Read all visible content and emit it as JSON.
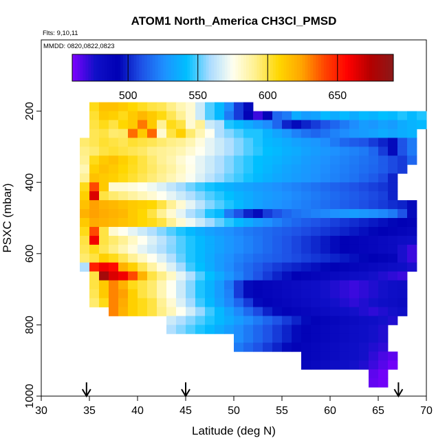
{
  "header": {
    "flights_text": "Flts: 9,10,11",
    "dates_text": "MMDD: 0820,0822,0823"
  },
  "chart_data": {
    "type": "heatmap",
    "title": "ATOM1 North_America CH3Cl_PMSD",
    "xlabel": "Latitude (deg N)",
    "ylabel": "PSXC (mbar)",
    "xlim": [
      30,
      70
    ],
    "ylim": [
      1000,
      0
    ],
    "x_ticks": [
      "30",
      "35",
      "40",
      "45",
      "50",
      "55",
      "60",
      "65",
      "70"
    ],
    "y_ticks": [
      "200",
      "400",
      "600",
      "800",
      "1000"
    ],
    "colorbar": {
      "range": [
        460,
        690
      ],
      "ticks": [
        "500",
        "550",
        "600",
        "650"
      ],
      "colors": [
        "#7f00ff",
        "#1010c8",
        "#0000b4",
        "#1e50e6",
        "#1e90ff",
        "#00bfff",
        "#aadcff",
        "#fffff0",
        "#fff08c",
        "#ffd700",
        "#ffa500",
        "#ff4500",
        "#ff0000",
        "#b40000",
        "#8b1a1a"
      ]
    },
    "cell_size": {
      "lat": 1,
      "pressure": 25
    },
    "bands": [
      {
        "p": 187.5,
        "lat_start": 35,
        "lat_end": 52,
        "values": [
          605,
          615,
          615,
          612,
          608,
          604,
          600,
          598,
          592,
          585,
          580,
          565,
          550,
          540,
          525,
          505,
          495
        ]
      },
      {
        "p": 212.5,
        "lat_start": 35,
        "lat_end": 70,
        "values": [
          602,
          612,
          610,
          605,
          612,
          618,
          612,
          606,
          598,
          590,
          580,
          565,
          550,
          540,
          520,
          505,
          490,
          470,
          490,
          515,
          520,
          535,
          530,
          532,
          540,
          535,
          540,
          535,
          540,
          538,
          542,
          540,
          545,
          540,
          545
        ]
      },
      {
        "p": 237.5,
        "lat_start": 35,
        "lat_end": 70,
        "values": [
          600,
          605,
          600,
          608,
          612,
          632,
          612,
          590,
          605,
          600,
          580,
          590,
          565,
          560,
          545,
          540,
          535,
          530,
          525,
          515,
          500,
          495,
          500,
          505,
          510,
          515,
          520,
          525,
          530,
          528,
          532,
          530,
          535,
          538,
          540
        ]
      },
      {
        "p": 262.5,
        "lat_start": 35,
        "lat_end": 69,
        "values": [
          598,
          600,
          595,
          596,
          634,
          612,
          635,
          580,
          600,
          610,
          595,
          585,
          575,
          560,
          555,
          550,
          545,
          545,
          538,
          533,
          528,
          522,
          518,
          515,
          518,
          522,
          525,
          528,
          530,
          532,
          535,
          533,
          536,
          538
        ]
      },
      {
        "p": 287.5,
        "lat_start": 34,
        "lat_end": 69,
        "values": [
          595,
          598,
          602,
          600,
          598,
          602,
          600,
          598,
          595,
          592,
          590,
          585,
          578,
          570,
          565,
          560,
          555,
          550,
          545,
          540,
          538,
          535,
          532,
          530,
          528,
          525,
          520,
          515,
          512,
          510,
          505,
          500,
          495,
          510,
          520
        ]
      },
      {
        "p": 312.5,
        "lat_start": 34,
        "lat_end": 69,
        "values": [
          592,
          595,
          600,
          602,
          600,
          598,
          596,
          592,
          590,
          588,
          585,
          580,
          575,
          570,
          565,
          560,
          555,
          550,
          546,
          542,
          540,
          537,
          535,
          532,
          530,
          528,
          526,
          524,
          522,
          520,
          515,
          505,
          495,
          510,
          520
        ]
      },
      {
        "p": 337.5,
        "lat_start": 34,
        "lat_end": 69,
        "values": [
          590,
          605,
          612,
          615,
          610,
          605,
          600,
          595,
          590,
          586,
          580,
          575,
          570,
          565,
          560,
          555,
          550,
          546,
          542,
          540,
          538,
          535,
          533,
          530,
          528,
          526,
          524,
          522,
          520,
          518,
          516,
          512,
          508,
          505,
          515
        ]
      },
      {
        "p": 362.5,
        "lat_start": 34,
        "lat_end": 68,
        "values": [
          585,
          610,
          615,
          612,
          608,
          604,
          600,
          596,
          592,
          588,
          582,
          576,
          570,
          565,
          560,
          555,
          550,
          546,
          542,
          539,
          536,
          533,
          531,
          529,
          527,
          525,
          523,
          521,
          519,
          517,
          515,
          512,
          508,
          505
        ]
      },
      {
        "p": 387.5,
        "lat_start": 34,
        "lat_end": 67,
        "values": [
          590,
          615,
          612,
          610,
          606,
          602,
          598,
          594,
          590,
          585,
          580,
          574,
          568,
          562,
          557,
          552,
          548,
          544,
          540,
          537,
          534,
          532,
          530,
          528,
          526,
          524,
          522,
          520,
          518,
          515,
          512,
          508,
          500
        ]
      },
      {
        "p": 412.5,
        "lat_start": 34,
        "lat_end": 67,
        "values": [
          605,
          640,
          612,
          580,
          580,
          578,
          575,
          572,
          568,
          563,
          558,
          553,
          548,
          544,
          540,
          537,
          534,
          532,
          530,
          528,
          526,
          524,
          522,
          520,
          518,
          516,
          514,
          512,
          510,
          508,
          506,
          504,
          500
        ]
      },
      {
        "p": 437.5,
        "lat_start": 34,
        "lat_end": 67,
        "values": [
          610,
          665,
          600,
          595,
          592,
          588,
          584,
          580,
          575,
          570,
          565,
          560,
          555,
          550,
          546,
          542,
          538,
          535,
          532,
          530,
          528,
          526,
          524,
          522,
          520,
          518,
          516,
          514,
          512,
          510,
          508,
          506,
          500
        ]
      },
      {
        "p": 462.5,
        "lat_start": 34,
        "lat_end": 68,
        "values": [
          615,
          625,
          620,
          618,
          615,
          612,
          610,
          608,
          600,
          590,
          580,
          570,
          562,
          555,
          550,
          545,
          540,
          536,
          532,
          529,
          527,
          525,
          523,
          521,
          519,
          517,
          515,
          513,
          511,
          509,
          507,
          505,
          502,
          500,
          495
        ]
      },
      {
        "p": 487.5,
        "lat_start": 34,
        "lat_end": 68,
        "values": [
          620,
          625,
          622,
          620,
          618,
          612,
          608,
          600,
          590,
          580,
          570,
          560,
          555,
          545,
          540,
          520,
          510,
          500,
          495,
          505,
          510,
          515,
          518,
          520,
          522,
          524,
          526,
          528,
          530,
          528,
          526,
          524,
          520,
          510,
          495
        ]
      },
      {
        "p": 512.5,
        "lat_start": 34,
        "lat_end": 68,
        "values": [
          612,
          622,
          620,
          618,
          615,
          612,
          608,
          605,
          600,
          590,
          580,
          572,
          565,
          558,
          552,
          546,
          540,
          535,
          530,
          526,
          522,
          518,
          515,
          512,
          510,
          508,
          506,
          504,
          502,
          500,
          498,
          496,
          494,
          492,
          490
        ]
      },
      {
        "p": 537.5,
        "lat_start": 34,
        "lat_end": 68,
        "values": [
          605,
          640,
          600,
          580,
          575,
          570,
          565,
          560,
          555,
          550,
          545,
          540,
          536,
          532,
          529,
          526,
          523,
          520,
          518,
          516,
          514,
          512,
          510,
          508,
          506,
          504,
          502,
          500,
          498,
          496,
          494,
          492,
          490,
          488,
          486
        ]
      },
      {
        "p": 562.5,
        "lat_start": 34,
        "lat_end": 68,
        "values": [
          600,
          660,
          600,
          595,
          590,
          582,
          575,
          568,
          562,
          556,
          550,
          545,
          540,
          536,
          532,
          528,
          525,
          522,
          519,
          516,
          513,
          510,
          507,
          504,
          501,
          498,
          495,
          492,
          490,
          488,
          486,
          484,
          482,
          480,
          478
        ]
      },
      {
        "p": 587.5,
        "lat_start": 34,
        "lat_end": 68,
        "values": [
          598,
          605,
          598,
          592,
          585,
          578,
          570,
          565,
          560,
          555,
          550,
          545,
          540,
          536,
          532,
          528,
          525,
          522,
          519,
          516,
          513,
          510,
          507,
          504,
          501,
          498,
          495,
          492,
          490,
          488,
          486,
          484,
          482,
          475,
          470
        ]
      },
      {
        "p": 612.5,
        "lat_start": 34,
        "lat_end": 68,
        "values": [
          595,
          600,
          610,
          605,
          598,
          590,
          582,
          575,
          568,
          560,
          552,
          545,
          540,
          535,
          530,
          526,
          522,
          519,
          516,
          514,
          512,
          510,
          508,
          506,
          504,
          502,
          500,
          498,
          496,
          494,
          492,
          490,
          488,
          475,
          470
        ]
      },
      {
        "p": 637.5,
        "lat_start": 34,
        "lat_end": 68,
        "values": [
          560,
          650,
          660,
          655,
          620,
          610,
          598,
          588,
          578,
          568,
          558,
          548,
          542,
          536,
          530,
          525,
          520,
          516,
          512,
          508,
          505,
          502,
          500,
          498,
          496,
          494,
          492,
          490,
          488,
          486,
          484,
          482,
          480,
          478,
          475
        ]
      },
      {
        "p": 662.5,
        "lat_start": 35,
        "lat_end": 68,
        "values": [
          600,
          680,
          665,
          660,
          640,
          620,
          600,
          592,
          582,
          570,
          560,
          550,
          542,
          535,
          528,
          522,
          516,
          510,
          505,
          500,
          496,
          492,
          490,
          488,
          486,
          484,
          482,
          480,
          478,
          476,
          474,
          472,
          470
        ]
      },
      {
        "p": 687.5,
        "lat_start": 35,
        "lat_end": 68,
        "values": [
          600,
          612,
          630,
          620,
          605,
          600,
          595,
          585,
          575,
          565,
          555,
          545,
          538,
          530,
          520,
          505,
          495,
          490,
          488,
          486,
          484,
          482,
          480,
          478,
          476,
          474,
          472,
          470,
          472,
          474,
          476,
          478,
          480
        ]
      },
      {
        "p": 712.5,
        "lat_start": 35,
        "lat_end": 68,
        "values": [
          598,
          612,
          630,
          625,
          610,
          600,
          595,
          585,
          575,
          565,
          555,
          545,
          538,
          530,
          522,
          505,
          495,
          490,
          488,
          486,
          484,
          482,
          480,
          478,
          476,
          474,
          472,
          470,
          472,
          474,
          476,
          478,
          480
        ]
      },
      {
        "p": 737.5,
        "lat_start": 35,
        "lat_end": 68,
        "values": [
          595,
          605,
          630,
          622,
          610,
          605,
          600,
          590,
          580,
          568,
          558,
          548,
          540,
          532,
          524,
          515,
          505,
          495,
          490,
          488,
          486,
          484,
          482,
          480,
          478,
          476,
          474,
          472,
          474,
          476,
          478,
          480,
          482
        ]
      },
      {
        "p": 762.5,
        "lat_start": 37,
        "lat_end": 68,
        "values": [
          630,
          620,
          610,
          605,
          600,
          592,
          584,
          575,
          566,
          557,
          548,
          540,
          532,
          524,
          516,
          508,
          500,
          495,
          490,
          488,
          486,
          484,
          482,
          480,
          478,
          476,
          474,
          472,
          474,
          476,
          478
        ]
      },
      {
        "p": 787.5,
        "lat_start": 43,
        "lat_end": 67,
        "values": [
          565,
          560,
          555,
          550,
          545,
          540,
          535,
          530,
          525,
          520,
          515,
          510,
          505,
          500,
          495,
          490,
          488,
          486,
          484,
          482,
          480,
          478,
          476,
          474
        ]
      },
      {
        "p": 812.5,
        "lat_start": 43,
        "lat_end": 66,
        "values": [
          560,
          555,
          550,
          545,
          540,
          535,
          530,
          525,
          520,
          515,
          510,
          505,
          500,
          495,
          490,
          488,
          486,
          484,
          482,
          480,
          478,
          476,
          474
        ]
      },
      {
        "p": 837.5,
        "lat_start": 50,
        "lat_end": 66,
        "values": [
          525,
          520,
          515,
          510,
          505,
          500,
          495,
          490,
          488,
          486,
          484,
          482,
          480,
          478,
          476,
          474
        ]
      },
      {
        "p": 862.5,
        "lat_start": 50,
        "lat_end": 66,
        "values": [
          520,
          515,
          510,
          505,
          500,
          495,
          490,
          488,
          486,
          484,
          482,
          480,
          478,
          476,
          474,
          472
        ]
      },
      {
        "p": 887.5,
        "lat_start": 57,
        "lat_end": 67,
        "values": [
          488,
          486,
          484,
          482,
          480,
          478,
          476,
          472,
          468,
          465
        ]
      },
      {
        "p": 912.5,
        "lat_start": 57,
        "lat_end": 67,
        "values": [
          486,
          484,
          482,
          480,
          478,
          476,
          474,
          470,
          466,
          462
        ]
      },
      {
        "p": 937.5,
        "lat_start": 64,
        "lat_end": 66,
        "values": [
          465,
          462
        ]
      },
      {
        "p": 962.5,
        "lat_start": 64,
        "lat_end": 66,
        "values": [
          464,
          462
        ]
      }
    ],
    "arrows_lat": [
      34.7,
      45.0,
      67.1
    ]
  }
}
